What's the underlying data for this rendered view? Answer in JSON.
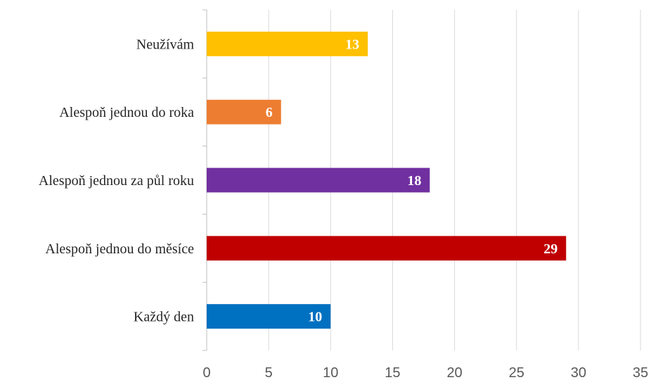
{
  "chart_data": {
    "type": "bar",
    "orientation": "horizontal",
    "title": "",
    "xlabel": "",
    "ylabel": "",
    "xlim": [
      0,
      35
    ],
    "x_ticks": [
      0,
      5,
      10,
      15,
      20,
      25,
      30,
      35
    ],
    "grid": "vertical",
    "legend": "none",
    "categories": [
      "Neužívám",
      "Alespoň jednou do roka",
      "Alespoň jednou za půl roku",
      "Alespoň jednou do měsíce",
      "Každý den"
    ],
    "values": [
      13,
      6,
      18,
      29,
      10
    ],
    "colors": [
      "#FFC000",
      "#ED7D31",
      "#7030A0",
      "#C00000",
      "#0070C0"
    ]
  }
}
